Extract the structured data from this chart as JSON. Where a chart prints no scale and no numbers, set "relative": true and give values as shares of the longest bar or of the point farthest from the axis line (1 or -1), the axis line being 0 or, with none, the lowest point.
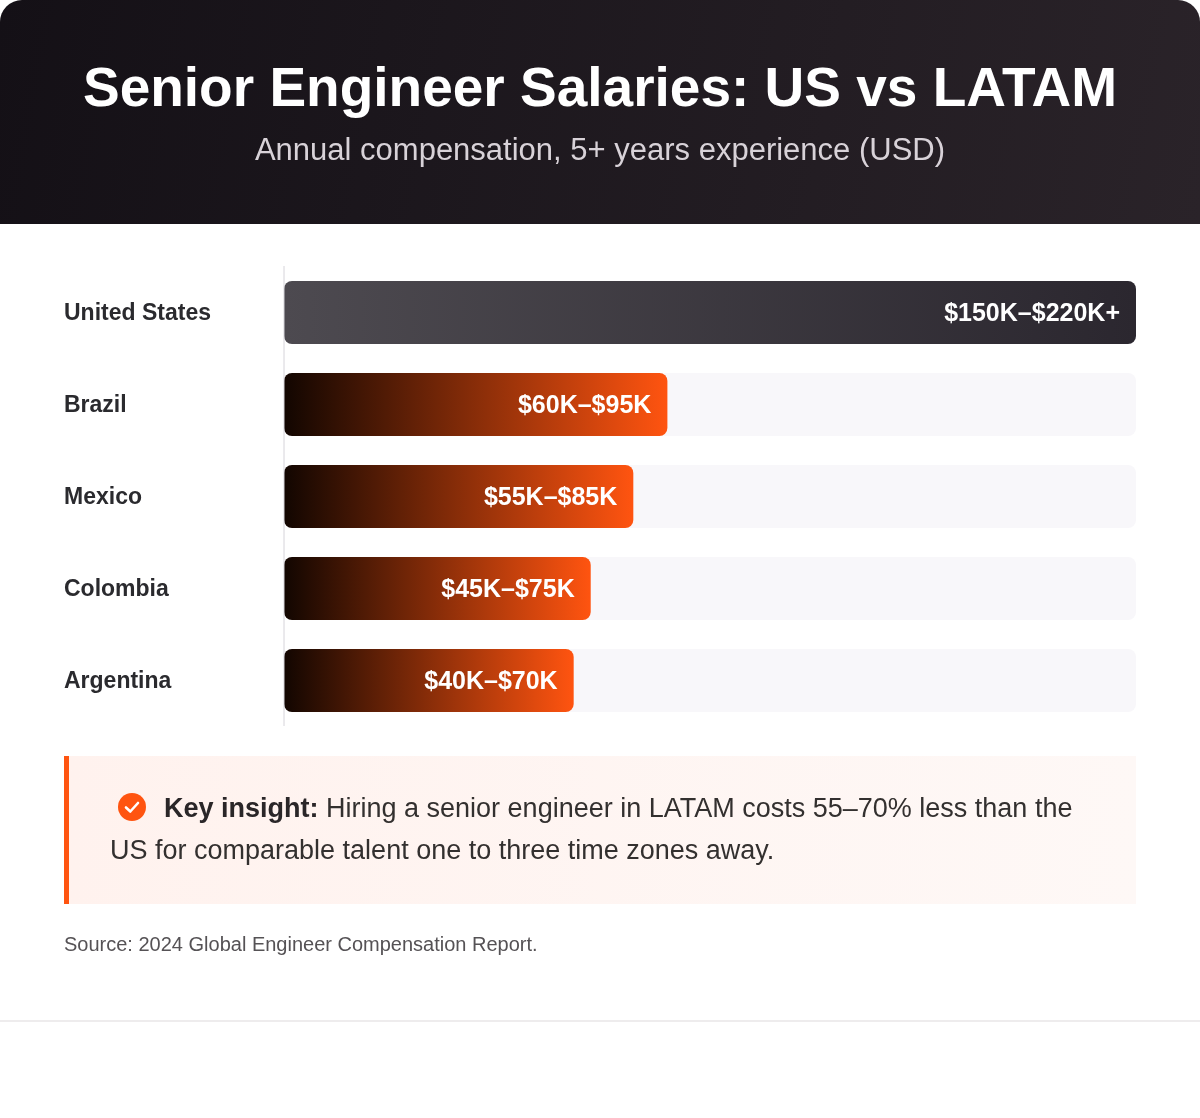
{
  "chart_data": {
    "type": "bar",
    "orientation": "horizontal",
    "relative": true,
    "title": "Senior Engineer Salaries: US vs LATAM",
    "subtitle": "Annual compensation, 5+ years experience (USD)",
    "categories": [
      "United States",
      "Brazil",
      "Mexico",
      "Colombia",
      "Argentina"
    ],
    "values": [
      1,
      0.45,
      0.41,
      0.36,
      0.34
    ],
    "colors": [
      "#2b272f",
      "#ff5410",
      "#ff5410",
      "#ff5410",
      "#ff5410"
    ],
    "annotations": [
      "$150K–$220K+",
      "$60K–$95K",
      "$55K–$85K",
      "$45K–$75K",
      "$40K–$70K",
      "Key insight: Hiring a senior engineer in LATAM costs 55–70% less than the US for comparable talent one to three time zones away.",
      "Source: 2024 Global Engineer Compensation Report."
    ]
  }
}
